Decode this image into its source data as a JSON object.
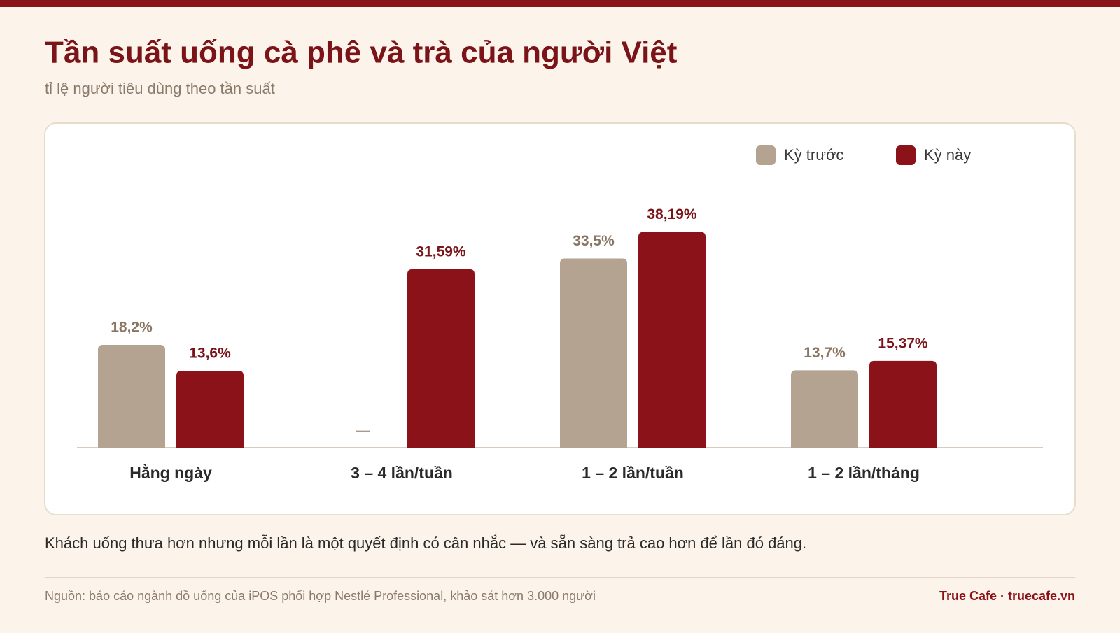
{
  "chart_data": {
    "type": "bar",
    "title": "Tần suất uống cà phê và trà của người Việt",
    "subtitle": "tỉ lệ người tiêu dùng theo tần suất",
    "categories": [
      "Hằng ngày",
      "3 – 4 lần/tuần",
      "1 – 2 lần/tuần",
      "1 – 2 lần/tháng"
    ],
    "series": [
      {
        "name": "Kỳ trước",
        "color": "#b3a390",
        "values": [
          18.2,
          null,
          33.5,
          13.7
        ],
        "value_labels": [
          "18,2%",
          "—",
          "33,5%",
          "13,7%"
        ]
      },
      {
        "name": "Kỳ này",
        "color": "#8c1219",
        "values": [
          13.6,
          31.59,
          38.19,
          15.37
        ],
        "value_labels": [
          "13,6%",
          "31,59%",
          "38,19%",
          "15,37%"
        ]
      }
    ],
    "ylim": [
      0,
      40
    ],
    "legend": "top-right",
    "caption": "Khách uống thưa hơn nhưng mỗi lần là một quyết định có cân nhắc — và sẵn sàng trả cao hơn để lần đó đáng.",
    "source": "Nguồn: báo cáo ngành đồ uống của iPOS phối hợp Nestlé Professional, khảo sát hơn 3.000 người",
    "brand": "True Cafe · truecafe.vn"
  }
}
